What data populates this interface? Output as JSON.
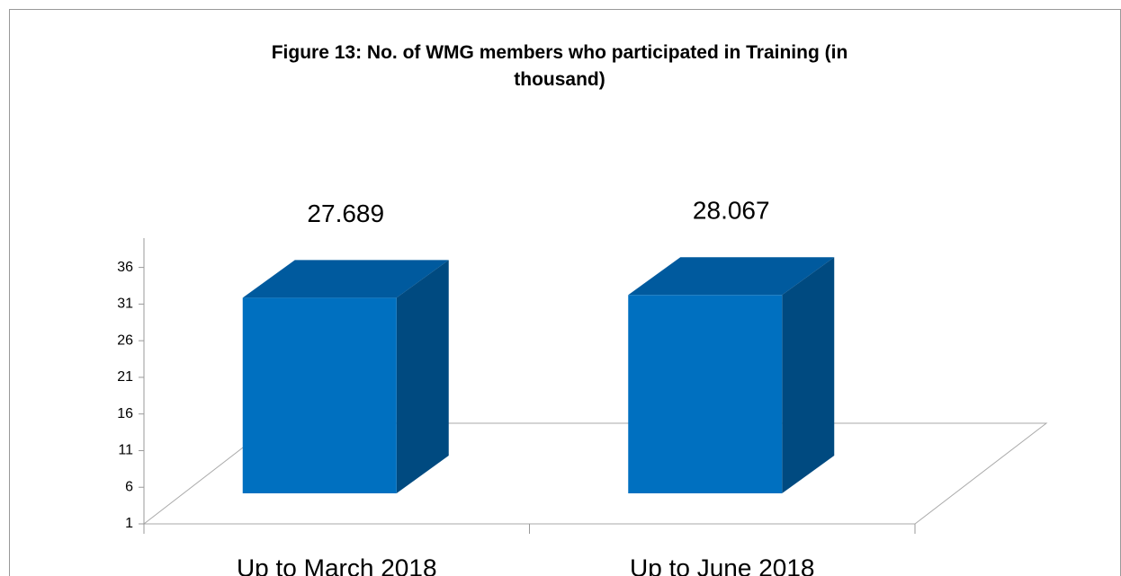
{
  "chart_data": {
    "type": "bar3d",
    "title": "Figure 13: No. of WMG members who participated in Training (in thousand)",
    "categories": [
      "Up to March 2018",
      "Up to June 2018"
    ],
    "values": [
      27.689,
      28.067
    ],
    "color": "#0070c0",
    "ylim": [
      1,
      40
    ],
    "yticks": [
      1,
      6,
      11,
      16,
      21,
      26,
      31,
      36
    ]
  }
}
